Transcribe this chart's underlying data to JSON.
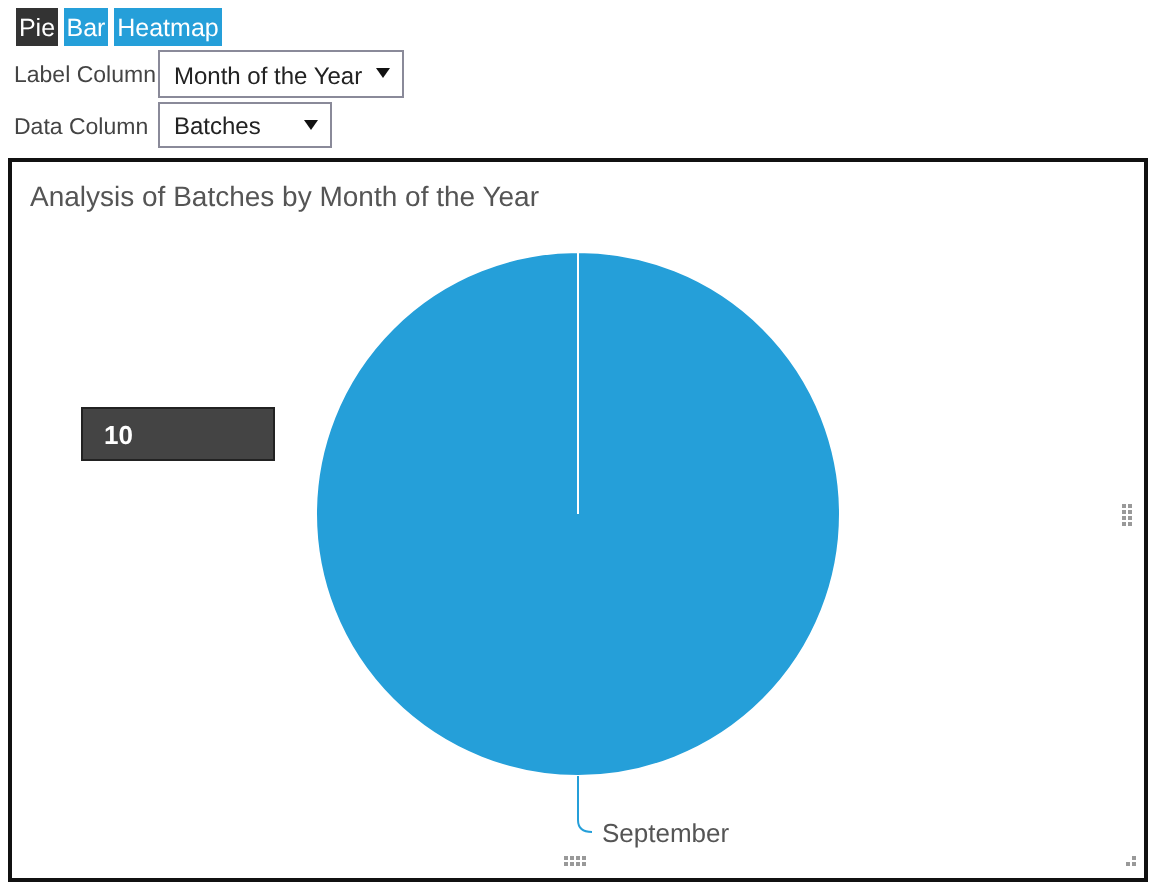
{
  "chart_data": {
    "type": "pie",
    "title": "Analysis of Batches by Month of the Year",
    "categories": [
      "September"
    ],
    "values": [
      10
    ],
    "colors": [
      "#259fd9"
    ],
    "data_labels": true,
    "annotations": [
      "Pie",
      "Bar",
      "Heatmap",
      "Label Column",
      "Month of the Year",
      "Data Column",
      "Batches"
    ]
  }
}
